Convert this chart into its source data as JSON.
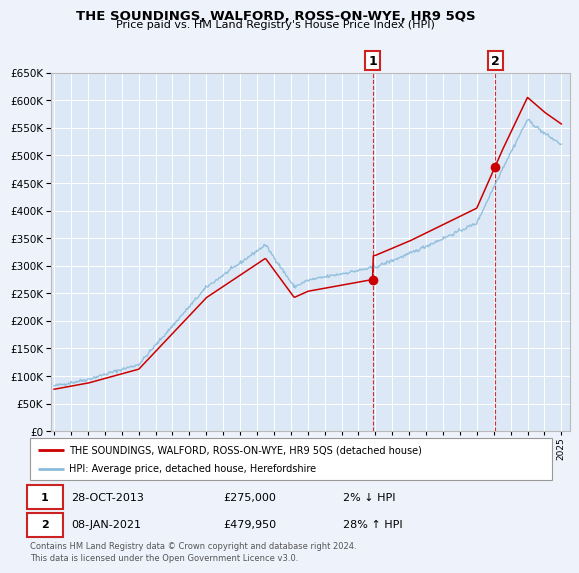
{
  "title": "THE SOUNDINGS, WALFORD, ROSS-ON-WYE, HR9 5QS",
  "subtitle": "Price paid vs. HM Land Registry's House Price Index (HPI)",
  "background_color": "#eef2fb",
  "plot_bg_color": "#dce8f6",
  "grid_color": "#ffffff",
  "sale1_date": "28-OCT-2013",
  "sale1_price": 275000,
  "sale1_label": "1",
  "sale1_hpi_pct": "2% ↓ HPI",
  "sale2_date": "08-JAN-2021",
  "sale2_price": 479950,
  "sale2_label": "2",
  "sale2_hpi_pct": "28% ↑ HPI",
  "legend1": "THE SOUNDINGS, WALFORD, ROSS-ON-WYE, HR9 5QS (detached house)",
  "legend2": "HPI: Average price, detached house, Herefordshire",
  "footer": "Contains HM Land Registry data © Crown copyright and database right 2024.\nThis data is licensed under the Open Government Licence v3.0.",
  "red_color": "#cc0000",
  "blue_color": "#8bbcda",
  "marker_color": "#cc0000",
  "box_edge_color": "#cc2222",
  "ylim": [
    0,
    650000
  ],
  "yticks": [
    0,
    50000,
    100000,
    150000,
    200000,
    250000,
    300000,
    350000,
    400000,
    450000,
    500000,
    550000,
    600000,
    650000
  ],
  "xmin": 1994.8,
  "xmax": 2025.5
}
